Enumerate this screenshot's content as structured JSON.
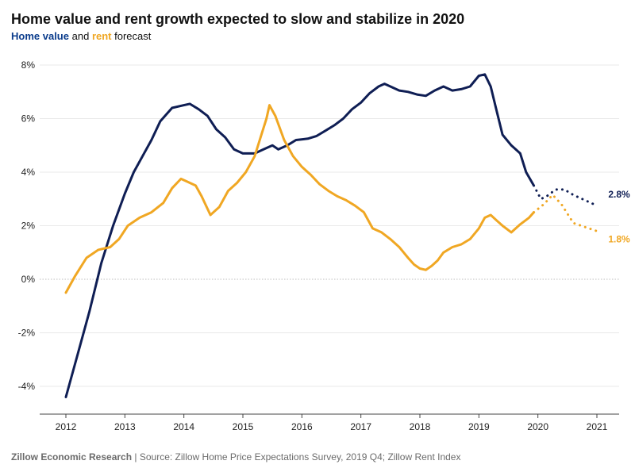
{
  "header": {
    "title": "Home value and rent growth expected to slow and stabilize in 2020",
    "subtitle_home": "Home value",
    "subtitle_and": "and",
    "subtitle_rent": "rent",
    "subtitle_forecast": "forecast"
  },
  "footer": {
    "org": "Zillow Economic Research",
    "separator": "|",
    "source": "Source: Zillow Home Price Expectations Survey, 2019 Q4; Zillow Rent Index"
  },
  "colors": {
    "home": "#0f1e54",
    "rent": "#f0a723",
    "grid": "#e9e9e9",
    "zero": "#bdbdbd",
    "axis": "#444444"
  },
  "chart_data": {
    "type": "line",
    "title": "Home value and rent growth expected to slow and stabilize in 2020",
    "subtitle": "Home value and rent forecast",
    "xlabel": "",
    "ylabel": "",
    "xlim": [
      2011.8,
      2021.3
    ],
    "ylim": [
      -5,
      8
    ],
    "y_ticks": [
      8,
      6,
      4,
      2,
      0,
      -2,
      -4
    ],
    "y_tick_labels": [
      "8%",
      "6%",
      "4%",
      "2%",
      "0%",
      "-2%",
      "-4%"
    ],
    "x_ticks": [
      2012,
      2013,
      2014,
      2015,
      2016,
      2017,
      2018,
      2019,
      2020,
      2021
    ],
    "x_tick_labels": [
      "2012",
      "2013",
      "2014",
      "2015",
      "2016",
      "2017",
      "2018",
      "2019",
      "2020",
      "2021"
    ],
    "series": [
      {
        "name": "Home value",
        "style": "solid",
        "points": [
          [
            2012.0,
            -4.4
          ],
          [
            2012.2,
            -2.8
          ],
          [
            2012.4,
            -1.2
          ],
          [
            2012.6,
            0.6
          ],
          [
            2012.8,
            2.0
          ],
          [
            2013.0,
            3.2
          ],
          [
            2013.15,
            4.0
          ],
          [
            2013.3,
            4.6
          ],
          [
            2013.45,
            5.2
          ],
          [
            2013.6,
            5.9
          ],
          [
            2013.8,
            6.4
          ],
          [
            2014.0,
            6.5
          ],
          [
            2014.1,
            6.55
          ],
          [
            2014.25,
            6.35
          ],
          [
            2014.4,
            6.1
          ],
          [
            2014.55,
            5.6
          ],
          [
            2014.7,
            5.3
          ],
          [
            2014.85,
            4.85
          ],
          [
            2015.0,
            4.7
          ],
          [
            2015.2,
            4.7
          ],
          [
            2015.35,
            4.85
          ],
          [
            2015.5,
            5.0
          ],
          [
            2015.6,
            4.85
          ],
          [
            2015.75,
            5.0
          ],
          [
            2015.9,
            5.2
          ],
          [
            2016.1,
            5.25
          ],
          [
            2016.25,
            5.35
          ],
          [
            2016.4,
            5.55
          ],
          [
            2016.55,
            5.75
          ],
          [
            2016.7,
            6.0
          ],
          [
            2016.85,
            6.35
          ],
          [
            2017.0,
            6.6
          ],
          [
            2017.15,
            6.95
          ],
          [
            2017.3,
            7.2
          ],
          [
            2017.4,
            7.3
          ],
          [
            2017.5,
            7.2
          ],
          [
            2017.65,
            7.05
          ],
          [
            2017.8,
            7.0
          ],
          [
            2017.95,
            6.9
          ],
          [
            2018.1,
            6.85
          ],
          [
            2018.25,
            7.05
          ],
          [
            2018.4,
            7.2
          ],
          [
            2018.55,
            7.05
          ],
          [
            2018.7,
            7.1
          ],
          [
            2018.85,
            7.2
          ],
          [
            2019.0,
            7.6
          ],
          [
            2019.1,
            7.65
          ],
          [
            2019.2,
            7.2
          ],
          [
            2019.3,
            6.3
          ],
          [
            2019.4,
            5.4
          ],
          [
            2019.55,
            5.0
          ],
          [
            2019.7,
            4.7
          ],
          [
            2019.8,
            4.0
          ],
          [
            2019.93,
            3.5
          ]
        ]
      },
      {
        "name": "Home value forecast",
        "style": "dotted",
        "points": [
          [
            2019.93,
            3.5
          ],
          [
            2020.05,
            3.0
          ],
          [
            2020.15,
            3.1
          ],
          [
            2020.3,
            3.35
          ],
          [
            2020.45,
            3.35
          ],
          [
            2020.6,
            3.15
          ],
          [
            2020.8,
            2.95
          ],
          [
            2021.0,
            2.75
          ]
        ]
      },
      {
        "name": "Rent",
        "style": "solid",
        "points": [
          [
            2012.0,
            -0.5
          ],
          [
            2012.15,
            0.1
          ],
          [
            2012.35,
            0.8
          ],
          [
            2012.55,
            1.1
          ],
          [
            2012.75,
            1.2
          ],
          [
            2012.9,
            1.5
          ],
          [
            2013.05,
            2.0
          ],
          [
            2013.25,
            2.3
          ],
          [
            2013.45,
            2.5
          ],
          [
            2013.65,
            2.85
          ],
          [
            2013.8,
            3.4
          ],
          [
            2013.95,
            3.75
          ],
          [
            2014.05,
            3.65
          ],
          [
            2014.2,
            3.5
          ],
          [
            2014.3,
            3.1
          ],
          [
            2014.45,
            2.4
          ],
          [
            2014.6,
            2.7
          ],
          [
            2014.75,
            3.3
          ],
          [
            2014.9,
            3.6
          ],
          [
            2015.05,
            4.0
          ],
          [
            2015.2,
            4.6
          ],
          [
            2015.3,
            5.3
          ],
          [
            2015.4,
            6.0
          ],
          [
            2015.45,
            6.5
          ],
          [
            2015.55,
            6.1
          ],
          [
            2015.7,
            5.2
          ],
          [
            2015.85,
            4.6
          ],
          [
            2016.0,
            4.2
          ],
          [
            2016.15,
            3.9
          ],
          [
            2016.3,
            3.55
          ],
          [
            2016.45,
            3.3
          ],
          [
            2016.6,
            3.1
          ],
          [
            2016.75,
            2.95
          ],
          [
            2016.9,
            2.75
          ],
          [
            2017.05,
            2.5
          ],
          [
            2017.2,
            1.9
          ],
          [
            2017.35,
            1.75
          ],
          [
            2017.5,
            1.5
          ],
          [
            2017.65,
            1.2
          ],
          [
            2017.8,
            0.8
          ],
          [
            2017.9,
            0.55
          ],
          [
            2018.0,
            0.4
          ],
          [
            2018.1,
            0.35
          ],
          [
            2018.2,
            0.5
          ],
          [
            2018.3,
            0.7
          ],
          [
            2018.4,
            1.0
          ],
          [
            2018.55,
            1.2
          ],
          [
            2018.7,
            1.3
          ],
          [
            2018.85,
            1.5
          ],
          [
            2019.0,
            1.9
          ],
          [
            2019.1,
            2.3
          ],
          [
            2019.2,
            2.4
          ],
          [
            2019.3,
            2.2
          ],
          [
            2019.4,
            2.0
          ],
          [
            2019.55,
            1.75
          ],
          [
            2019.7,
            2.05
          ],
          [
            2019.85,
            2.3
          ],
          [
            2019.93,
            2.5
          ]
        ]
      },
      {
        "name": "Rent forecast",
        "style": "dotted",
        "points": [
          [
            2019.93,
            2.5
          ],
          [
            2020.1,
            2.8
          ],
          [
            2020.25,
            3.15
          ],
          [
            2020.4,
            2.8
          ],
          [
            2020.6,
            2.1
          ],
          [
            2020.8,
            1.95
          ],
          [
            2021.0,
            1.8
          ]
        ]
      }
    ],
    "annotations": [
      {
        "series": "Home value forecast",
        "label": "2.8%",
        "x": 2021.0,
        "y": 2.75
      },
      {
        "series": "Rent forecast",
        "label": "1.8%",
        "x": 2021.0,
        "y": 1.8
      }
    ]
  }
}
